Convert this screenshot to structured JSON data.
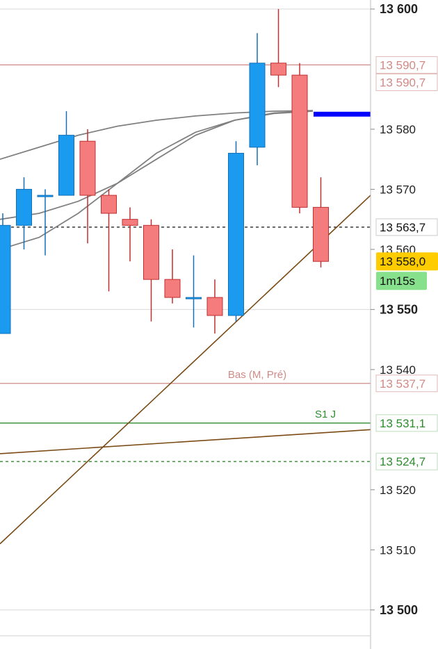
{
  "colors": {
    "bull": "#1a9bf0",
    "bull_edge": "#1370b8",
    "bear": "#f47c7c",
    "bear_edge": "#c03030",
    "ma": "#808080",
    "trend": "#7a4a14",
    "resistance": "#d08a86",
    "support": "#2e8b2e",
    "current_line": "#111111",
    "blue_marker": "#0000ff",
    "price_current_bg": "#ffcc00",
    "timer_bg": "#86e08c",
    "grid": "#d8d8d8"
  },
  "chart_data": {
    "type": "candlestick",
    "ylim": [
      13493.5,
      13601.5
    ],
    "y_ticks": [
      {
        "value": 13600,
        "label": "13 600",
        "major": true
      },
      {
        "value": 13580,
        "label": "13 580",
        "major": false
      },
      {
        "value": 13570,
        "label": "13 570",
        "major": false
      },
      {
        "value": 13560,
        "label": "13 560",
        "major": false
      },
      {
        "value": 13550,
        "label": "13 550",
        "major": true
      },
      {
        "value": 13540,
        "label": "13 540",
        "major": false
      },
      {
        "value": 13520,
        "label": "13 520",
        "major": false
      },
      {
        "value": 13510,
        "label": "13 510",
        "major": false
      },
      {
        "value": 13500,
        "label": "13 500",
        "major": true
      }
    ],
    "candles": [
      {
        "open": 13546,
        "high": 13566,
        "low": 13546,
        "close": 13564
      },
      {
        "open": 13564,
        "high": 13572,
        "low": 13560,
        "close": 13570
      },
      {
        "open": 13569,
        "high": 13570,
        "low": 13559,
        "close": 13569
      },
      {
        "open": 13569,
        "high": 13583,
        "low": 13569,
        "close": 13579
      },
      {
        "open": 13578,
        "high": 13580,
        "low": 13561,
        "close": 13569
      },
      {
        "open": 13569,
        "high": 13570,
        "low": 13553,
        "close": 13566
      },
      {
        "open": 13565,
        "high": 13567,
        "low": 13558,
        "close": 13564
      },
      {
        "open": 13564,
        "high": 13565,
        "low": 13548,
        "close": 13555
      },
      {
        "open": 13555,
        "high": 13560,
        "low": 13551,
        "close": 13552
      },
      {
        "open": 13552,
        "high": 13559,
        "low": 13547,
        "close": 13552
      },
      {
        "open": 13552,
        "high": 13555,
        "low": 13546,
        "close": 13549
      },
      {
        "open": 13549,
        "high": 13578,
        "low": 13548,
        "close": 13576
      },
      {
        "open": 13577,
        "high": 13596,
        "low": 13574,
        "close": 13591
      },
      {
        "open": 13591,
        "high": 13600,
        "low": 13587,
        "close": 13589
      },
      {
        "open": 13589,
        "high": 13591,
        "low": 13566,
        "close": 13567
      },
      {
        "open": 13567,
        "high": 13572,
        "low": 13557,
        "close": 13558
      }
    ],
    "moving_averages": [
      {
        "points": [
          13575,
          13577,
          13579,
          13580.5,
          13581.5,
          13582.2,
          13582.7,
          13583,
          13583.1
        ]
      },
      {
        "points": [
          13560,
          13562,
          13566,
          13571,
          13576,
          13579.5,
          13581.5,
          13582.6,
          13583
        ]
      },
      {
        "points": [
          13565,
          13566,
          13568,
          13571,
          13575,
          13579,
          13581.5,
          13582.7,
          13583.1
        ]
      }
    ],
    "levels": [
      {
        "value": 13590.7,
        "label": "13 590,7",
        "kind": "resistance",
        "text": ""
      },
      {
        "value": 13563.7,
        "label": "13 563,7",
        "kind": "current",
        "text": ""
      },
      {
        "value": 13537.7,
        "label": "13 537,7",
        "kind": "resistance",
        "text": "Bas (M, Pré)"
      },
      {
        "value": 13531.1,
        "label": "13 531,1",
        "kind": "support",
        "text": "S1 J"
      },
      {
        "value": 13524.7,
        "label": "13 524,7",
        "kind": "support_dashed",
        "text": ""
      }
    ],
    "extra_price_tags": [
      {
        "value": 13590.7,
        "label": "13 590,7",
        "kind": "resistance"
      }
    ],
    "trend_lines": [
      {
        "from": 13511,
        "to": 13569
      },
      {
        "from": 13526,
        "to": 13530
      }
    ],
    "blue_marker_value": 13582.5,
    "current_price": {
      "value": 13558.0,
      "label": "13 558,0"
    },
    "timer": {
      "label": "1m15s"
    }
  }
}
